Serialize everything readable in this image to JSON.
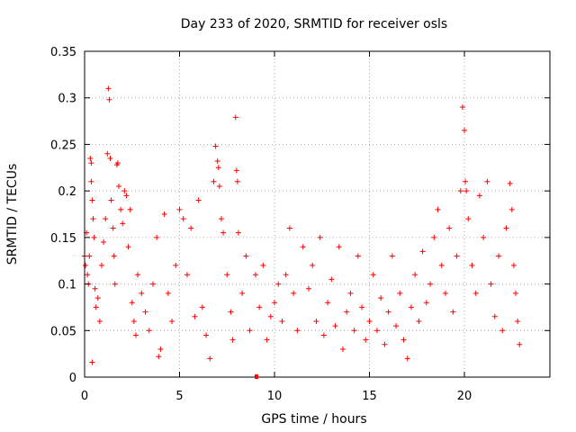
{
  "chart_data": {
    "type": "scatter",
    "title": "Day 233 of 2020, SRMTID for receiver osls",
    "xlabel": "GPS time / hours",
    "ylabel": "SRMTID / TECUs",
    "xlim": [
      0,
      24.5
    ],
    "ylim": [
      0,
      0.35
    ],
    "xticks": [
      0,
      5,
      10,
      15,
      20
    ],
    "yticks": [
      0,
      0.05,
      0.1,
      0.15,
      0.2,
      0.25,
      0.3,
      0.35
    ],
    "x_tick_labels": [
      "0",
      "5",
      "10",
      "15",
      "20"
    ],
    "y_tick_labels": [
      "0",
      "0.05",
      "0.1",
      "0.15",
      "0.2",
      "0.25",
      "0.3",
      "0.35"
    ],
    "grid": true,
    "marker": "+",
    "colors": {
      "points": "#ff0000",
      "grid": "#aaaaaa",
      "axis": "#000000"
    },
    "series": [
      {
        "name": "SRMTID",
        "points": [
          [
            0.0,
            0.13
          ],
          [
            0.05,
            0.12
          ],
          [
            0.1,
            0.155
          ],
          [
            0.15,
            0.11
          ],
          [
            0.2,
            0.1
          ],
          [
            0.25,
            0.13
          ],
          [
            0.3,
            0.235
          ],
          [
            0.35,
            0.23
          ],
          [
            0.35,
            0.21
          ],
          [
            0.4,
            0.19
          ],
          [
            0.4,
            0.016
          ],
          [
            0.45,
            0.17
          ],
          [
            0.5,
            0.15
          ],
          [
            0.55,
            0.095
          ],
          [
            0.6,
            0.075
          ],
          [
            0.7,
            0.085
          ],
          [
            0.8,
            0.06
          ],
          [
            0.9,
            0.12
          ],
          [
            1.0,
            0.145
          ],
          [
            1.1,
            0.17
          ],
          [
            1.2,
            0.24
          ],
          [
            1.25,
            0.31
          ],
          [
            1.3,
            0.298
          ],
          [
            1.35,
            0.235
          ],
          [
            1.4,
            0.19
          ],
          [
            1.5,
            0.16
          ],
          [
            1.55,
            0.13
          ],
          [
            1.6,
            0.1
          ],
          [
            1.7,
            0.228
          ],
          [
            1.75,
            0.23
          ],
          [
            1.8,
            0.205
          ],
          [
            1.9,
            0.18
          ],
          [
            2.0,
            0.165
          ],
          [
            2.1,
            0.2
          ],
          [
            2.2,
            0.195
          ],
          [
            2.3,
            0.14
          ],
          [
            2.4,
            0.18
          ],
          [
            2.5,
            0.08
          ],
          [
            2.6,
            0.06
          ],
          [
            2.7,
            0.045
          ],
          [
            2.8,
            0.11
          ],
          [
            3.0,
            0.09
          ],
          [
            3.2,
            0.07
          ],
          [
            3.4,
            0.05
          ],
          [
            3.6,
            0.1
          ],
          [
            3.8,
            0.15
          ],
          [
            3.9,
            0.022
          ],
          [
            4.0,
            0.03
          ],
          [
            4.2,
            0.175
          ],
          [
            4.4,
            0.09
          ],
          [
            4.6,
            0.06
          ],
          [
            4.8,
            0.12
          ],
          [
            5.0,
            0.18
          ],
          [
            5.2,
            0.17
          ],
          [
            5.4,
            0.11
          ],
          [
            5.6,
            0.16
          ],
          [
            5.8,
            0.065
          ],
          [
            6.0,
            0.19
          ],
          [
            6.2,
            0.075
          ],
          [
            6.4,
            0.045
          ],
          [
            6.6,
            0.02
          ],
          [
            6.8,
            0.21
          ],
          [
            6.9,
            0.248
          ],
          [
            7.0,
            0.232
          ],
          [
            7.05,
            0.225
          ],
          [
            7.1,
            0.205
          ],
          [
            7.2,
            0.17
          ],
          [
            7.3,
            0.155
          ],
          [
            7.5,
            0.11
          ],
          [
            7.7,
            0.07
          ],
          [
            7.8,
            0.04
          ],
          [
            7.95,
            0.279
          ],
          [
            8.0,
            0.222
          ],
          [
            8.05,
            0.21
          ],
          [
            8.1,
            0.155
          ],
          [
            8.3,
            0.09
          ],
          [
            8.5,
            0.13
          ],
          [
            8.7,
            0.05
          ],
          [
            9.0,
            0.11
          ],
          [
            9.2,
            0.075
          ],
          [
            9.4,
            0.12
          ],
          [
            9.6,
            0.04
          ],
          [
            9.8,
            0.065
          ],
          [
            10.0,
            0.08
          ],
          [
            10.2,
            0.1
          ],
          [
            10.4,
            0.06
          ],
          [
            10.6,
            0.11
          ],
          [
            10.8,
            0.16
          ],
          [
            11.0,
            0.09
          ],
          [
            11.2,
            0.05
          ],
          [
            11.5,
            0.14
          ],
          [
            11.8,
            0.095
          ],
          [
            12.0,
            0.12
          ],
          [
            12.2,
            0.06
          ],
          [
            12.4,
            0.15
          ],
          [
            12.6,
            0.045
          ],
          [
            12.8,
            0.08
          ],
          [
            13.0,
            0.105
          ],
          [
            13.2,
            0.055
          ],
          [
            13.4,
            0.14
          ],
          [
            13.6,
            0.03
          ],
          [
            13.8,
            0.07
          ],
          [
            14.0,
            0.09
          ],
          [
            14.2,
            0.05
          ],
          [
            14.4,
            0.13
          ],
          [
            14.6,
            0.075
          ],
          [
            14.8,
            0.04
          ],
          [
            15.0,
            0.06
          ],
          [
            15.2,
            0.11
          ],
          [
            15.4,
            0.05
          ],
          [
            15.6,
            0.085
          ],
          [
            15.8,
            0.035
          ],
          [
            16.0,
            0.07
          ],
          [
            16.2,
            0.13
          ],
          [
            16.4,
            0.055
          ],
          [
            16.6,
            0.09
          ],
          [
            16.8,
            0.04
          ],
          [
            17.0,
            0.02
          ],
          [
            17.2,
            0.075
          ],
          [
            17.4,
            0.11
          ],
          [
            17.6,
            0.06
          ],
          [
            17.8,
            0.135
          ],
          [
            18.0,
            0.08
          ],
          [
            18.2,
            0.1
          ],
          [
            18.4,
            0.15
          ],
          [
            18.6,
            0.18
          ],
          [
            18.8,
            0.12
          ],
          [
            19.0,
            0.09
          ],
          [
            19.2,
            0.16
          ],
          [
            19.4,
            0.07
          ],
          [
            19.6,
            0.13
          ],
          [
            19.8,
            0.2
          ],
          [
            19.9,
            0.29
          ],
          [
            20.0,
            0.265
          ],
          [
            20.05,
            0.21
          ],
          [
            20.1,
            0.2
          ],
          [
            20.2,
            0.17
          ],
          [
            20.4,
            0.12
          ],
          [
            20.6,
            0.09
          ],
          [
            20.8,
            0.195
          ],
          [
            21.0,
            0.15
          ],
          [
            21.2,
            0.21
          ],
          [
            21.4,
            0.1
          ],
          [
            21.6,
            0.065
          ],
          [
            21.8,
            0.13
          ],
          [
            22.0,
            0.05
          ],
          [
            22.2,
            0.16
          ],
          [
            22.4,
            0.208
          ],
          [
            22.5,
            0.18
          ],
          [
            22.6,
            0.12
          ],
          [
            22.7,
            0.09
          ],
          [
            22.8,
            0.06
          ],
          [
            22.9,
            0.035
          ]
        ]
      }
    ]
  }
}
